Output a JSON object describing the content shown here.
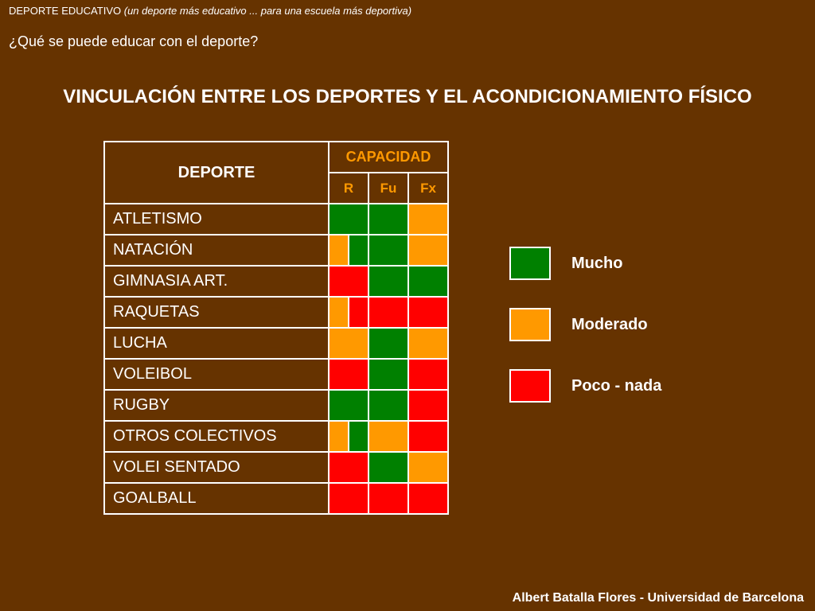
{
  "header": {
    "brand": "DEPORTE EDUCATIVO",
    "tagline": "(un deporte más educativo ... para una escuela más deportiva)"
  },
  "question": "¿Qué se puede educar con el deporte?",
  "title": "VINCULACIÓN ENTRE LOS DEPORTES Y EL ACONDICIONAMIENTO FÍSICO",
  "table": {
    "col_deporte": "DEPORTE",
    "col_capacidad": "CAPACIDAD",
    "sub_cols": [
      "R",
      "Fu",
      "Fx"
    ],
    "rows": [
      {
        "sport": "ATLETISMO",
        "cells": [
          [
            "mucho"
          ],
          [
            "mucho"
          ],
          [
            "moderado"
          ]
        ]
      },
      {
        "sport": "NATACIÓN",
        "cells": [
          [
            "moderado",
            "mucho"
          ],
          [
            "mucho"
          ],
          [
            "moderado"
          ]
        ]
      },
      {
        "sport": "GIMNASIA ART.",
        "cells": [
          [
            "poco"
          ],
          [
            "mucho"
          ],
          [
            "mucho"
          ]
        ]
      },
      {
        "sport": "RAQUETAS",
        "cells": [
          [
            "moderado",
            "poco"
          ],
          [
            "poco"
          ],
          [
            "poco"
          ]
        ]
      },
      {
        "sport": "LUCHA",
        "cells": [
          [
            "moderado"
          ],
          [
            "mucho"
          ],
          [
            "moderado"
          ]
        ]
      },
      {
        "sport": "VOLEIBOL",
        "cells": [
          [
            "poco"
          ],
          [
            "mucho"
          ],
          [
            "poco"
          ]
        ]
      },
      {
        "sport": "RUGBY",
        "cells": [
          [
            "mucho"
          ],
          [
            "mucho"
          ],
          [
            "poco"
          ]
        ]
      },
      {
        "sport": "OTROS COLECTIVOS",
        "cells": [
          [
            "moderado",
            "mucho"
          ],
          [
            "moderado"
          ],
          [
            "poco"
          ]
        ]
      },
      {
        "sport": "VOLEI SENTADO",
        "cells": [
          [
            "poco"
          ],
          [
            "mucho"
          ],
          [
            "moderado"
          ]
        ]
      },
      {
        "sport": "GOALBALL",
        "cells": [
          [
            "poco"
          ],
          [
            "poco"
          ],
          [
            "poco"
          ]
        ]
      }
    ]
  },
  "colors": {
    "mucho": "#008000",
    "moderado": "#FF9900",
    "poco": "#FF0000",
    "background": "#663300",
    "accent": "#FF9900"
  },
  "legend": [
    {
      "key": "mucho",
      "label": "Mucho"
    },
    {
      "key": "moderado",
      "label": "Moderado"
    },
    {
      "key": "poco",
      "label": "Poco - nada"
    }
  ],
  "footer": "Albert Batalla Flores - Universidad de Barcelona"
}
